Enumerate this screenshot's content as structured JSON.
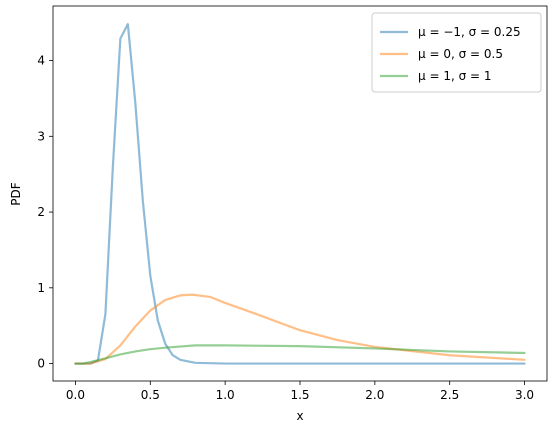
{
  "chart_data": {
    "type": "line",
    "xlabel": "x",
    "ylabel": "PDF",
    "xlim": [
      -0.15,
      3.15
    ],
    "ylim": [
      -0.23,
      4.72
    ],
    "xticks": [
      0.0,
      0.5,
      1.0,
      1.5,
      2.0,
      2.5,
      3.0
    ],
    "xtick_labels": [
      "0.0",
      "0.5",
      "1.0",
      "1.5",
      "2.0",
      "2.5",
      "3.0"
    ],
    "yticks": [
      0,
      1,
      2,
      3,
      4
    ],
    "ytick_labels": [
      "0",
      "1",
      "2",
      "3",
      "4"
    ],
    "grid": false,
    "legend_position": "top-right",
    "series": [
      {
        "name": "μ = −1, σ = 0.25",
        "color": "#1f77b4",
        "x": [
          0.0,
          0.1,
          0.15,
          0.2,
          0.25,
          0.3,
          0.35,
          0.4,
          0.45,
          0.5,
          0.55,
          0.6,
          0.65,
          0.7,
          0.8,
          1.0,
          1.5,
          2.0,
          3.0
        ],
        "values": [
          0.0,
          0.0,
          0.04,
          0.65,
          2.6,
          4.29,
          4.48,
          3.44,
          2.15,
          1.16,
          0.57,
          0.26,
          0.11,
          0.05,
          0.01,
          0.0,
          0.0,
          0.0,
          0.0
        ]
      },
      {
        "name": "μ = 0, σ = 0.5",
        "color": "#ff7f0e",
        "x": [
          0.0,
          0.1,
          0.2,
          0.3,
          0.4,
          0.5,
          0.6,
          0.7,
          0.78,
          0.9,
          1.0,
          1.2,
          1.5,
          1.75,
          2.0,
          2.5,
          3.0
        ],
        "values": [
          0.0,
          0.0,
          0.06,
          0.24,
          0.49,
          0.7,
          0.84,
          0.9,
          0.91,
          0.88,
          0.8,
          0.66,
          0.44,
          0.31,
          0.22,
          0.11,
          0.05
        ]
      },
      {
        "name": "μ = 1, σ = 1",
        "color": "#2ca02c",
        "x": [
          0.0,
          0.05,
          0.1,
          0.2,
          0.3,
          0.4,
          0.5,
          0.6,
          0.8,
          1.0,
          1.5,
          2.0,
          2.5,
          3.0
        ],
        "values": [
          0.0,
          0.0,
          0.02,
          0.07,
          0.12,
          0.16,
          0.19,
          0.21,
          0.24,
          0.24,
          0.23,
          0.2,
          0.16,
          0.14
        ]
      }
    ]
  }
}
